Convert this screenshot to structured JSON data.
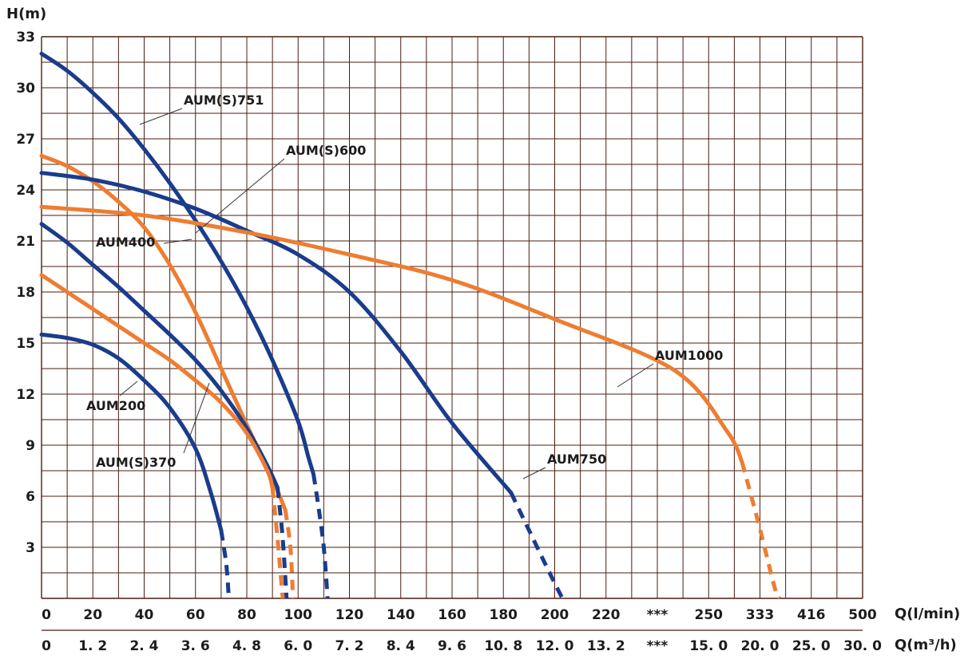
{
  "chart_data": {
    "type": "line",
    "y_axis": {
      "title": "H(m)",
      "ylim": [
        0,
        33
      ],
      "ticks": [
        "33",
        "30",
        "27",
        "24",
        "21",
        "18",
        "15",
        "12",
        "9",
        "6",
        "3"
      ],
      "tick_values": [
        33,
        30,
        27,
        24,
        21,
        18,
        15,
        12,
        9,
        6,
        3
      ],
      "minor_step": 1.5
    },
    "x_axis_primary": {
      "title": "Q(l/min)",
      "ticks": [
        "0",
        "20",
        "40",
        "60",
        "80",
        "100",
        "120",
        "140",
        "160",
        "180",
        "200",
        "220",
        "***",
        "250",
        "333",
        "416",
        "500"
      ]
    },
    "x_axis_secondary": {
      "title": "Q(m³/h)",
      "ticks": [
        "0",
        "1. 2",
        "2. 4",
        "3. 6",
        "4. 8",
        "6. 0",
        "7. 2",
        "8. 4",
        "9. 6",
        "10. 8",
        "12. 0",
        "13. 2",
        "***",
        "15. 0",
        "20. 0",
        "25. 0",
        "30. 0"
      ]
    },
    "grid": true,
    "colors": {
      "blue": "#1a3c8c",
      "orange": "#ee7d31",
      "grid": "#4a1e12"
    },
    "series": [
      {
        "name": "AUM(S)751",
        "color": "blue",
        "points": [
          [
            0,
            32
          ],
          [
            10,
            31
          ],
          [
            20,
            29.7
          ],
          [
            30,
            28.2
          ],
          [
            40,
            26.4
          ],
          [
            50,
            24.4
          ],
          [
            60,
            22.2
          ],
          [
            70,
            19.8
          ],
          [
            80,
            17.1
          ],
          [
            90,
            14
          ],
          [
            100,
            10.4
          ],
          [
            104,
            8.3
          ],
          [
            106,
            7.3
          ]
        ],
        "dashed": [
          [
            106,
            7.3
          ],
          [
            108,
            5.3
          ],
          [
            110,
            3
          ],
          [
            111.5,
            0
          ]
        ]
      },
      {
        "name": "AUM(S)600",
        "color": "orange",
        "points": [
          [
            0,
            26
          ],
          [
            10,
            25.4
          ],
          [
            20,
            24.5
          ],
          [
            30,
            23.3
          ],
          [
            40,
            21.8
          ],
          [
            50,
            19.6
          ],
          [
            60,
            16.8
          ],
          [
            70,
            13.5
          ],
          [
            80,
            10.2
          ],
          [
            90,
            7
          ],
          [
            95,
            5.2
          ]
        ],
        "dashed": [
          [
            95,
            5.2
          ],
          [
            97,
            3
          ],
          [
            98,
            0
          ]
        ]
      },
      {
        "name": "AUM750",
        "color": "blue",
        "points": [
          [
            0,
            25
          ],
          [
            20,
            24.6
          ],
          [
            40,
            23.9
          ],
          [
            60,
            22.9
          ],
          [
            80,
            21.6
          ],
          [
            100,
            20.2
          ],
          [
            120,
            18
          ],
          [
            140,
            14.5
          ],
          [
            160,
            10.3
          ],
          [
            183,
            6.2
          ]
        ],
        "dashed": [
          [
            183,
            6.2
          ],
          [
            190,
            4
          ],
          [
            198,
            1.5
          ],
          [
            203,
            0
          ]
        ]
      },
      {
        "name": "AUM1000",
        "color": "orange",
        "points": [
          [
            0,
            23
          ],
          [
            40,
            22.5
          ],
          [
            80,
            21.5
          ],
          [
            120,
            20.2
          ],
          [
            160,
            18.7
          ],
          [
            200,
            16.4
          ],
          [
            240,
            13.4
          ],
          [
            280,
            9.8
          ],
          [
            304,
            8
          ]
        ],
        "dashed": [
          [
            304,
            8
          ],
          [
            330,
            4.5
          ],
          [
            357,
            0.6
          ],
          [
            364,
            0
          ]
        ]
      },
      {
        "name": "AUM400",
        "color": "blue",
        "points": [
          [
            0,
            22
          ],
          [
            10,
            20.9
          ],
          [
            20,
            19.6
          ],
          [
            30,
            18.3
          ],
          [
            40,
            16.9
          ],
          [
            50,
            15.5
          ],
          [
            60,
            14
          ],
          [
            70,
            12.2
          ],
          [
            80,
            10
          ],
          [
            88,
            7.8
          ],
          [
            92,
            6.5
          ]
        ],
        "dashed": [
          [
            92,
            6.5
          ],
          [
            94,
            3.5
          ],
          [
            95.5,
            0
          ]
        ]
      },
      {
        "name": "AUM(S)370",
        "color": "orange",
        "points": [
          [
            0,
            19
          ],
          [
            10,
            18
          ],
          [
            20,
            17
          ],
          [
            30,
            16
          ],
          [
            40,
            15
          ],
          [
            50,
            14
          ],
          [
            60,
            12.8
          ],
          [
            70,
            11.5
          ],
          [
            80,
            9.7
          ],
          [
            88,
            7.5
          ],
          [
            90,
            6.5
          ]
        ],
        "dashed": [
          [
            90,
            6.5
          ],
          [
            92,
            3.5
          ],
          [
            94,
            0
          ]
        ]
      },
      {
        "name": "AUM200",
        "color": "blue",
        "points": [
          [
            0,
            15.5
          ],
          [
            10,
            15.3
          ],
          [
            20,
            14.9
          ],
          [
            30,
            14.1
          ],
          [
            40,
            12.8
          ],
          [
            50,
            11.2
          ],
          [
            60,
            8.8
          ],
          [
            66,
            6.2
          ],
          [
            70,
            4
          ]
        ],
        "dashed": [
          [
            70,
            4
          ],
          [
            72,
            2
          ],
          [
            73,
            0
          ]
        ]
      }
    ]
  }
}
